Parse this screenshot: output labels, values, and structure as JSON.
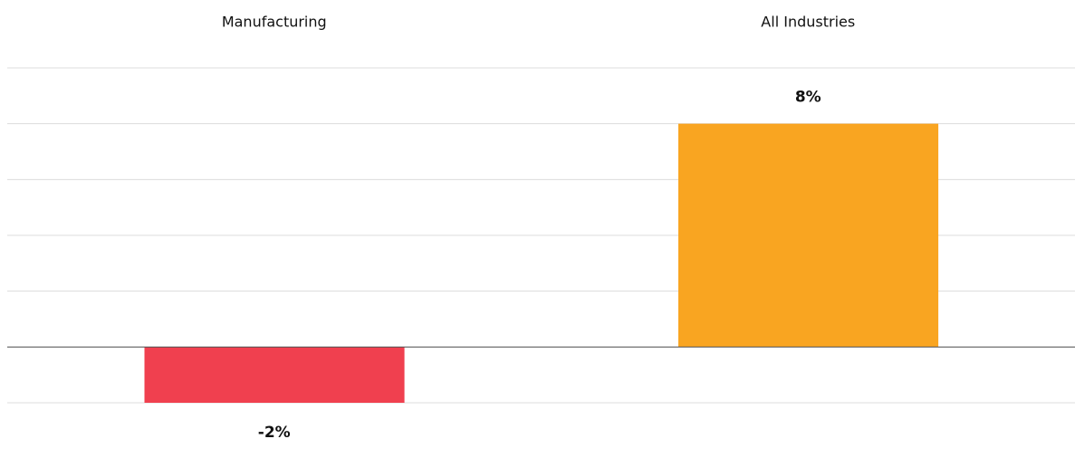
{
  "chart_data": {
    "type": "bar",
    "categories": [
      "Manufacturing",
      "All Industries"
    ],
    "values": [
      -2,
      8
    ],
    "value_labels": [
      "-2%",
      "8%"
    ],
    "colors": [
      "#f0404f",
      "#f9a521"
    ],
    "ylim": [
      -2,
      10
    ],
    "yticks": [
      -2,
      0,
      2,
      4,
      6,
      8,
      10
    ],
    "grid": true
  }
}
